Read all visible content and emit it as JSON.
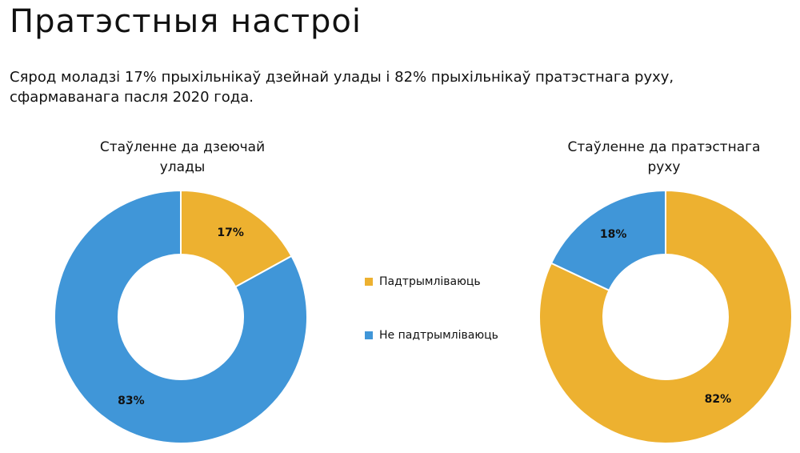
{
  "page": {
    "title": "Пратэстныя настроі",
    "subtitle": "Сярод моладзі 17% прыхільнікаў дзейнай улады і 82% прыхільнікаў пратэстнага руху, сфармаванага пасля 2020 года."
  },
  "legend": [
    {
      "label": "Падтрымліваюць",
      "color": "#EDB130"
    },
    {
      "label": "Не падтрымліваюць",
      "color": "#4096D8"
    }
  ],
  "chart_data": [
    {
      "type": "pie",
      "title": "Стаўленне да дзеючай улады",
      "categories": [
        "Падтрымліваюць",
        "Не падтрымліваюць"
      ],
      "values": [
        17,
        83
      ],
      "labels": [
        "17%",
        "83%"
      ],
      "colors": [
        "#EDB130",
        "#4096D8"
      ],
      "donut": true
    },
    {
      "type": "pie",
      "title": "Стаўленне да пратэстнага руху",
      "categories": [
        "Падтрымліваюць",
        "Не падтрымліваюць"
      ],
      "values": [
        82,
        18
      ],
      "labels": [
        "82%",
        "18%"
      ],
      "colors": [
        "#EDB130",
        "#4096D8"
      ],
      "donut": true
    }
  ]
}
